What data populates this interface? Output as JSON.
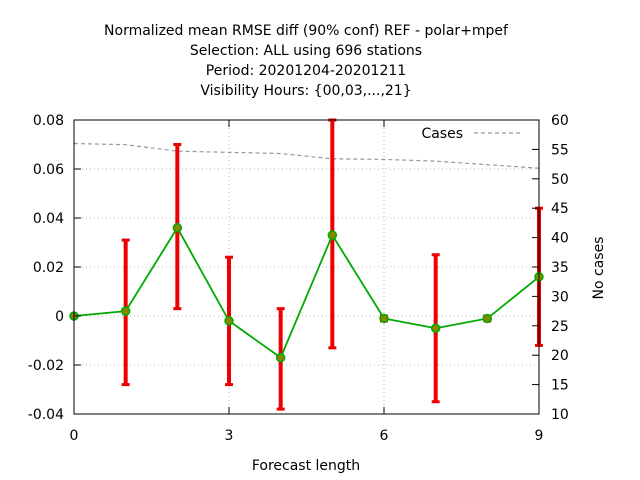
{
  "chart_data": {
    "type": "line",
    "title_lines": [
      "Normalized mean RMSE diff (90% conf) REF - polar+mpef",
      "Selection: ALL using   696 stations",
      "Period: 20201204-20201211",
      "Visibility   Hours: {00,03,...,21}"
    ],
    "xlabel": "Forecast length",
    "ylabel": "",
    "y2label": "No cases",
    "xlim": [
      0,
      9
    ],
    "ylim": [
      -0.04,
      0.08
    ],
    "y2lim": [
      10,
      60
    ],
    "x_ticks": [
      0,
      3,
      6,
      9
    ],
    "y_ticks": [
      "-0.04",
      "-0.02",
      "0",
      "0.02",
      "0.04",
      "0.06",
      "0.08"
    ],
    "y2_ticks": [
      "10",
      "15",
      "20",
      "25",
      "30",
      "35",
      "40",
      "45",
      "50",
      "55",
      "60"
    ],
    "grid": true,
    "legend": {
      "label": "Cases",
      "position": "top-right"
    },
    "series": [
      {
        "x": [
          0,
          1,
          2,
          3,
          4,
          5,
          6,
          7,
          8,
          9
        ],
        "values": [
          0.0,
          0.002,
          0.036,
          -0.002,
          -0.017,
          0.033,
          -0.001,
          -0.005,
          -0.001,
          0.016
        ],
        "ci_lower": [
          0.0,
          -0.028,
          0.003,
          -0.028,
          -0.038,
          -0.013,
          -0.002,
          -0.035,
          -0.002,
          -0.012
        ],
        "ci_upper": [
          0.0,
          0.031,
          0.07,
          0.024,
          0.003,
          0.08,
          0.0,
          0.025,
          0.0,
          0.044
        ],
        "color": "#00aa00",
        "error_color": "#ee0000",
        "marker_color": "#888800"
      },
      {
        "name": "Cases",
        "axis": "y2",
        "x": [
          0,
          1,
          2,
          3,
          4,
          5,
          6,
          7,
          8,
          9
        ],
        "values": [
          56.0,
          55.8,
          54.7,
          54.5,
          54.3,
          53.4,
          53.3,
          53.0,
          52.4,
          51.8
        ],
        "color": "#999999"
      }
    ]
  }
}
